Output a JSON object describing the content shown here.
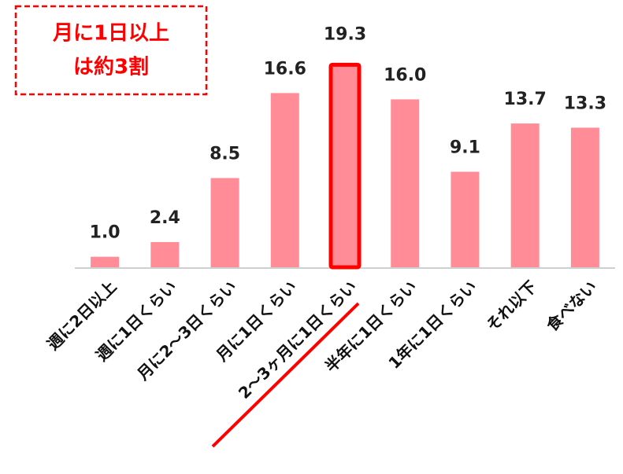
{
  "chart_data": {
    "type": "bar",
    "annotation": [
      "月に1日以上",
      "は約3割"
    ],
    "categories": [
      "週に2日以上",
      "週に1日くらい",
      "月に2～3日くらい",
      "月に1日くらい",
      "2～3ヶ月に1日くらい",
      "半年に1日くらい",
      "1年に1日くらい",
      "それ以下",
      "食べない"
    ],
    "values": [
      1.0,
      2.4,
      8.5,
      16.6,
      19.3,
      16.0,
      9.1,
      13.7,
      13.3
    ],
    "value_labels": [
      "1.0",
      "2.4",
      "8.5",
      "16.6",
      "19.3",
      "16.0",
      "9.1",
      "13.7",
      "13.3"
    ],
    "color": "#ff8c96",
    "highlight": 4,
    "highlight_color": "#ff0000",
    "ylim": [
      0,
      20
    ]
  }
}
